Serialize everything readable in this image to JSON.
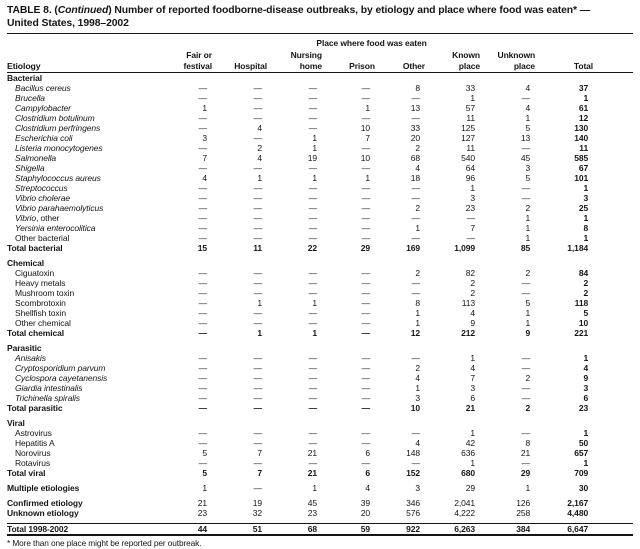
{
  "title": {
    "line1_prefix": "TABLE 8. (",
    "line1_italic": "Continued",
    "line1_rest": ") Number of reported foodborne-disease outbreaks, by etiology and place where food was eaten* —",
    "line2": "United States, 1998–2002"
  },
  "footnote": "* More than one place might be reported per outbreak.",
  "table": {
    "spanner": "Place where food was eaten",
    "etiology_header": "Etiology",
    "columns": [
      {
        "line1": "Fair or",
        "line2": "festival"
      },
      {
        "line1": "",
        "line2": "Hospital"
      },
      {
        "line1": "Nursing",
        "line2": "home"
      },
      {
        "line1": "",
        "line2": "Prison"
      },
      {
        "line1": "",
        "line2": "Other"
      },
      {
        "line1": "Known",
        "line2": "place"
      },
      {
        "line1": "Unknown",
        "line2": "place"
      },
      {
        "line1": "",
        "line2": "Total"
      }
    ],
    "sections": [
      {
        "name": "Bacterial",
        "rows": [
          {
            "label": "Bacillus cereus",
            "italic": true,
            "values": [
              "—",
              "—",
              "—",
              "—",
              "8",
              "33",
              "4",
              "37"
            ]
          },
          {
            "label": "Brucella",
            "italic": true,
            "values": [
              "—",
              "—",
              "—",
              "—",
              "—",
              "1",
              "—",
              "1"
            ]
          },
          {
            "label": "Campylobacter",
            "italic": true,
            "values": [
              "1",
              "—",
              "—",
              "1",
              "13",
              "57",
              "4",
              "61"
            ]
          },
          {
            "label": "Clostridium botulinum",
            "italic": true,
            "values": [
              "—",
              "—",
              "—",
              "—",
              "—",
              "11",
              "1",
              "12"
            ]
          },
          {
            "label": "Clostridium perfringens",
            "italic": true,
            "values": [
              "—",
              "4",
              "—",
              "10",
              "33",
              "125",
              "5",
              "130"
            ]
          },
          {
            "label": "Escherichia coli",
            "italic": true,
            "values": [
              "3",
              "—",
              "1",
              "7",
              "20",
              "127",
              "13",
              "140"
            ]
          },
          {
            "label": "Listeria monocytogenes",
            "italic": true,
            "values": [
              "—",
              "2",
              "1",
              "—",
              "2",
              "11",
              "—",
              "11"
            ]
          },
          {
            "label": "Salmonella",
            "italic": true,
            "values": [
              "7",
              "4",
              "19",
              "10",
              "68",
              "540",
              "45",
              "585"
            ]
          },
          {
            "label": "Shigella",
            "italic": true,
            "values": [
              "—",
              "—",
              "—",
              "—",
              "4",
              "64",
              "3",
              "67"
            ]
          },
          {
            "label": "Staphylococcus aureus",
            "italic": true,
            "values": [
              "4",
              "1",
              "1",
              "1",
              "18",
              "96",
              "5",
              "101"
            ]
          },
          {
            "label": "Streptococcus",
            "italic": true,
            "values": [
              "—",
              "—",
              "—",
              "—",
              "—",
              "1",
              "—",
              "1"
            ]
          },
          {
            "label": "Vibrio cholerae",
            "italic": true,
            "values": [
              "—",
              "—",
              "—",
              "—",
              "—",
              "3",
              "—",
              "3"
            ]
          },
          {
            "label": "Vibrio parahaemolyticus",
            "italic": true,
            "values": [
              "—",
              "—",
              "—",
              "—",
              "2",
              "23",
              "2",
              "25"
            ]
          },
          {
            "label": "Vibrio",
            "suffix": ", other",
            "italic": true,
            "values": [
              "—",
              "—",
              "—",
              "—",
              "—",
              "—",
              "1",
              "1"
            ]
          },
          {
            "label": "Yersinia enterocolitica",
            "italic": true,
            "values": [
              "—",
              "—",
              "—",
              "—",
              "1",
              "7",
              "1",
              "8"
            ]
          },
          {
            "label": "Other bacterial",
            "italic": false,
            "values": [
              "—",
              "—",
              "—",
              "—",
              "—",
              "—",
              "1",
              "1"
            ]
          },
          {
            "label": "Total bacterial",
            "total": true,
            "values": [
              "15",
              "11",
              "22",
              "29",
              "169",
              "1,099",
              "85",
              "1,184"
            ]
          }
        ]
      },
      {
        "name": "Chemical",
        "rows": [
          {
            "label": "Ciguatoxin",
            "values": [
              "—",
              "—",
              "—",
              "—",
              "2",
              "82",
              "2",
              "84"
            ]
          },
          {
            "label": "Heavy metals",
            "values": [
              "—",
              "—",
              "—",
              "—",
              "—",
              "2",
              "—",
              "2"
            ]
          },
          {
            "label": "Mushroom toxin",
            "values": [
              "—",
              "—",
              "—",
              "—",
              "—",
              "2",
              "—",
              "2"
            ]
          },
          {
            "label": "Scombrotoxin",
            "values": [
              "—",
              "1",
              "1",
              "—",
              "8",
              "113",
              "5",
              "118"
            ]
          },
          {
            "label": "Shellfish toxin",
            "values": [
              "—",
              "—",
              "—",
              "—",
              "1",
              "4",
              "1",
              "5"
            ]
          },
          {
            "label": "Other chemical",
            "values": [
              "—",
              "—",
              "—",
              "—",
              "1",
              "9",
              "1",
              "10"
            ]
          },
          {
            "label": "Total chemical",
            "total": true,
            "values": [
              "—",
              "1",
              "1",
              "—",
              "12",
              "212",
              "9",
              "221"
            ]
          }
        ]
      },
      {
        "name": "Parasitic",
        "rows": [
          {
            "label": "Anisakis",
            "italic": true,
            "values": [
              "—",
              "—",
              "—",
              "—",
              "—",
              "1",
              "—",
              "1"
            ]
          },
          {
            "label": "Cryptosporidium parvum",
            "italic": true,
            "values": [
              "—",
              "—",
              "—",
              "—",
              "2",
              "4",
              "—",
              "4"
            ]
          },
          {
            "label": "Cyclospora cayetanensis",
            "italic": true,
            "values": [
              "—",
              "—",
              "—",
              "—",
              "4",
              "7",
              "2",
              "9"
            ]
          },
          {
            "label": "Giardia intestinalis",
            "italic": true,
            "values": [
              "—",
              "—",
              "—",
              "—",
              "1",
              "3",
              "—",
              "3"
            ]
          },
          {
            "label": "Trichinella spiralis",
            "italic": true,
            "values": [
              "—",
              "—",
              "—",
              "—",
              "3",
              "6",
              "—",
              "6"
            ]
          },
          {
            "label": "Total parasitic",
            "total": true,
            "values": [
              "—",
              "—",
              "—",
              "—",
              "10",
              "21",
              "2",
              "23"
            ]
          }
        ]
      },
      {
        "name": "Viral",
        "rows": [
          {
            "label": "Astrovirus",
            "values": [
              "—",
              "—",
              "—",
              "—",
              "—",
              "1",
              "—",
              "1"
            ]
          },
          {
            "label": "Hepatitis A",
            "values": [
              "—",
              "—",
              "—",
              "—",
              "4",
              "42",
              "8",
              "50"
            ]
          },
          {
            "label": "Norovirus",
            "values": [
              "5",
              "7",
              "21",
              "6",
              "148",
              "636",
              "21",
              "657"
            ]
          },
          {
            "label": "Rotavirus",
            "values": [
              "—",
              "—",
              "—",
              "—",
              "—",
              "1",
              "—",
              "1"
            ]
          },
          {
            "label": "Total viral",
            "total": true,
            "values": [
              "5",
              "7",
              "21",
              "6",
              "152",
              "680",
              "29",
              "709"
            ]
          }
        ]
      }
    ],
    "footer_rows": [
      {
        "label": "Multiple etiologies",
        "bold_label": true,
        "gap_before": true,
        "values": [
          "1",
          "—",
          "1",
          "4",
          "3",
          "29",
          "1",
          "30"
        ]
      },
      {
        "label": "Confirmed etiology",
        "bold_label": true,
        "gap_before": true,
        "values": [
          "21",
          "19",
          "45",
          "39",
          "346",
          "2,041",
          "126",
          "2,167"
        ]
      },
      {
        "label": "Unknown etiology",
        "bold_label": true,
        "gap_before": false,
        "values": [
          "23",
          "32",
          "23",
          "20",
          "576",
          "4,222",
          "258",
          "4,480"
        ]
      },
      {
        "label": "Total 1998-2002",
        "bold_label": true,
        "gap_before": true,
        "final": true,
        "values": [
          "44",
          "51",
          "68",
          "59",
          "922",
          "6,263",
          "384",
          "6,647"
        ]
      }
    ]
  }
}
